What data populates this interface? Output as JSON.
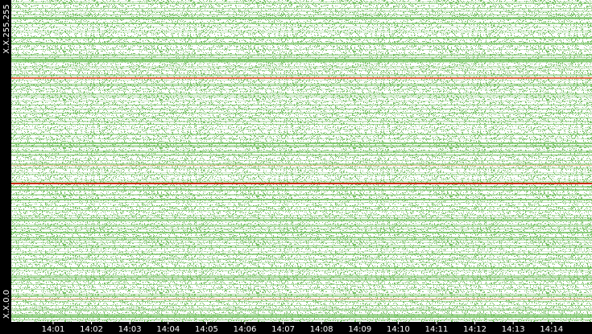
{
  "y_axis": {
    "top_label": "X.X.255.255",
    "bottom_label": "X.X.0.0"
  },
  "x_axis": {
    "ticks": [
      "14:01",
      "14:02",
      "14:03",
      "14:04",
      "14:05",
      "14:06",
      "14:07",
      "14:08",
      "14:09",
      "14:10",
      "14:11",
      "14:12",
      "14:13",
      "14:14"
    ]
  }
}
